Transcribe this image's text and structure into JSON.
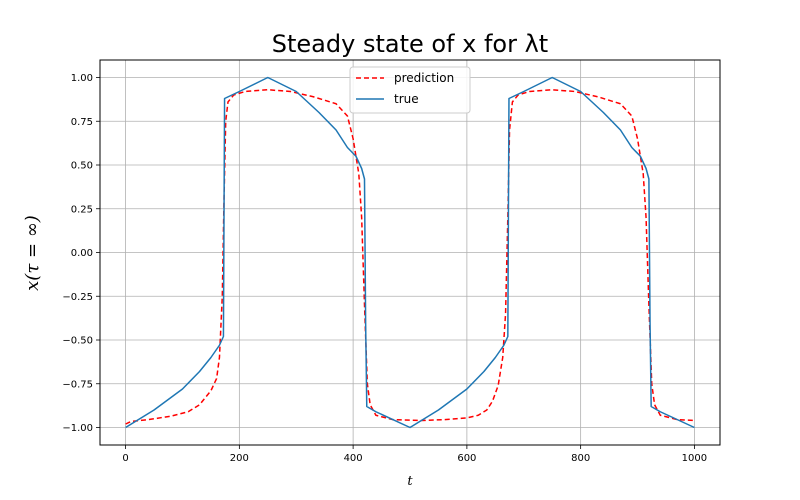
{
  "chart_data": {
    "type": "line",
    "title": "Steady state of x for λt",
    "xlabel": "t",
    "ylabel": "x(τ = ∞)",
    "xlim": [
      -45,
      1045
    ],
    "ylim": [
      -1.1,
      1.1
    ],
    "xticks": [
      0,
      200,
      400,
      600,
      800,
      1000
    ],
    "xtick_labels": [
      "0",
      "200",
      "400",
      "600",
      "800",
      "1000"
    ],
    "yticks": [
      -1.0,
      -0.75,
      -0.5,
      -0.25,
      0.0,
      0.25,
      0.5,
      0.75,
      1.0
    ],
    "ytick_labels": [
      "−1.00",
      "−0.75",
      "−0.50",
      "−0.25",
      "0.00",
      "0.25",
      "0.50",
      "0.75",
      "1.00"
    ],
    "grid": true,
    "legend_position": "top-center",
    "series": [
      {
        "name": "prediction",
        "color": "#ff0000",
        "style": "dashed",
        "points": [
          [
            0,
            -0.98
          ],
          [
            10,
            -0.965
          ],
          [
            40,
            -0.955
          ],
          [
            80,
            -0.935
          ],
          [
            110,
            -0.91
          ],
          [
            130,
            -0.87
          ],
          [
            150,
            -0.79
          ],
          [
            160,
            -0.72
          ],
          [
            165,
            -0.6
          ],
          [
            170,
            -0.25
          ],
          [
            173,
            0.3
          ],
          [
            176,
            0.75
          ],
          [
            180,
            0.86
          ],
          [
            190,
            0.9
          ],
          [
            210,
            0.92
          ],
          [
            250,
            0.93
          ],
          [
            290,
            0.92
          ],
          [
            330,
            0.89
          ],
          [
            370,
            0.85
          ],
          [
            390,
            0.78
          ],
          [
            400,
            0.65
          ],
          [
            410,
            0.45
          ],
          [
            415,
            0.2
          ],
          [
            420,
            -0.3
          ],
          [
            425,
            -0.75
          ],
          [
            430,
            -0.87
          ],
          [
            440,
            -0.93
          ],
          [
            470,
            -0.955
          ],
          [
            520,
            -0.96
          ],
          [
            560,
            -0.955
          ],
          [
            600,
            -0.945
          ],
          [
            620,
            -0.93
          ],
          [
            635,
            -0.9
          ],
          [
            645,
            -0.85
          ],
          [
            655,
            -0.76
          ],
          [
            663,
            -0.6
          ],
          [
            668,
            -0.35
          ],
          [
            672,
            0.2
          ],
          [
            675,
            0.7
          ],
          [
            680,
            0.86
          ],
          [
            690,
            0.9
          ],
          [
            710,
            0.92
          ],
          [
            750,
            0.93
          ],
          [
            790,
            0.92
          ],
          [
            830,
            0.89
          ],
          [
            870,
            0.85
          ],
          [
            890,
            0.78
          ],
          [
            900,
            0.65
          ],
          [
            910,
            0.45
          ],
          [
            915,
            0.2
          ],
          [
            920,
            -0.3
          ],
          [
            925,
            -0.75
          ],
          [
            930,
            -0.87
          ],
          [
            940,
            -0.93
          ],
          [
            970,
            -0.955
          ],
          [
            1000,
            -0.96
          ]
        ]
      },
      {
        "name": "true",
        "color": "#1f77b4",
        "style": "solid",
        "points": [
          [
            0,
            -1.0
          ],
          [
            50,
            -0.9
          ],
          [
            100,
            -0.78
          ],
          [
            130,
            -0.68
          ],
          [
            150,
            -0.6
          ],
          [
            165,
            -0.53
          ],
          [
            172,
            -0.48
          ],
          [
            174,
            0.88
          ],
          [
            200,
            0.92
          ],
          [
            250,
            1.0
          ],
          [
            300,
            0.92
          ],
          [
            340,
            0.8
          ],
          [
            370,
            0.7
          ],
          [
            390,
            0.6
          ],
          [
            405,
            0.55
          ],
          [
            415,
            0.48
          ],
          [
            420,
            0.42
          ],
          [
            422,
            -0.4
          ],
          [
            424,
            -0.88
          ],
          [
            440,
            -0.91
          ],
          [
            500,
            -1.0
          ],
          [
            550,
            -0.9
          ],
          [
            600,
            -0.78
          ],
          [
            630,
            -0.68
          ],
          [
            650,
            -0.6
          ],
          [
            665,
            -0.53
          ],
          [
            672,
            -0.48
          ],
          [
            674,
            0.88
          ],
          [
            700,
            0.92
          ],
          [
            750,
            1.0
          ],
          [
            800,
            0.92
          ],
          [
            840,
            0.8
          ],
          [
            870,
            0.7
          ],
          [
            890,
            0.6
          ],
          [
            905,
            0.55
          ],
          [
            915,
            0.48
          ],
          [
            920,
            0.42
          ],
          [
            922,
            -0.4
          ],
          [
            924,
            -0.88
          ],
          [
            940,
            -0.91
          ],
          [
            1000,
            -1.0
          ]
        ]
      }
    ]
  }
}
